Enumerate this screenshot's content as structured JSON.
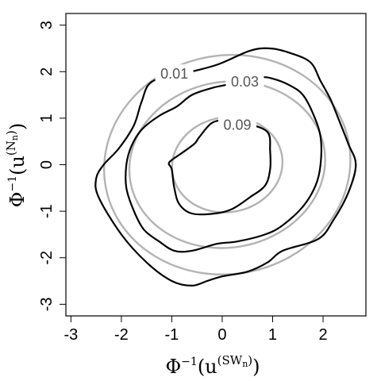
{
  "chart_data": {
    "type": "contour",
    "title": "",
    "xlabel": "Φ⁻¹(u^(SWₙ))",
    "ylabel": "Φ⁻¹(u^(Nₙ))",
    "xlim": [
      -3.1,
      2.85
    ],
    "ylim": [
      -3.25,
      3.25
    ],
    "xticks": [
      -3,
      -2,
      -1,
      0,
      1,
      2
    ],
    "yticks": [
      -3,
      -2,
      -1,
      0,
      1,
      2,
      3
    ],
    "grid": false,
    "series": [
      {
        "level": "0.01",
        "color": "#000000",
        "kind": "empirical",
        "points": [
          [
            -1.4,
            1.78
          ],
          [
            -0.8,
            1.95
          ],
          [
            -0.1,
            2.15
          ],
          [
            0.55,
            2.45
          ],
          [
            0.95,
            2.5
          ],
          [
            1.35,
            2.4
          ],
          [
            1.75,
            2.2
          ],
          [
            1.95,
            1.8
          ],
          [
            2.15,
            1.4
          ],
          [
            2.3,
            1.0
          ],
          [
            2.5,
            0.45
          ],
          [
            2.65,
            0.0
          ],
          [
            2.5,
            -0.6
          ],
          [
            2.2,
            -1.2
          ],
          [
            1.9,
            -1.6
          ],
          [
            1.2,
            -1.85
          ],
          [
            0.9,
            -2.1
          ],
          [
            0.5,
            -2.3
          ],
          [
            0.0,
            -2.4
          ],
          [
            -0.3,
            -2.5
          ],
          [
            -0.6,
            -2.6
          ],
          [
            -1.0,
            -2.5
          ],
          [
            -1.5,
            -2.1
          ],
          [
            -2.0,
            -1.5
          ],
          [
            -2.45,
            -0.7
          ],
          [
            -2.5,
            -0.3
          ],
          [
            -2.35,
            0.0
          ],
          [
            -2.05,
            0.35
          ],
          [
            -1.75,
            0.85
          ],
          [
            -1.6,
            1.35
          ],
          [
            -1.4,
            1.78
          ]
        ]
      },
      {
        "level": "0.03",
        "color": "#000000",
        "kind": "empirical",
        "points": [
          [
            -0.9,
            1.25
          ],
          [
            -0.6,
            1.5
          ],
          [
            -0.2,
            1.65
          ],
          [
            0.1,
            1.72
          ],
          [
            0.4,
            1.8
          ],
          [
            0.75,
            1.88
          ],
          [
            1.0,
            1.85
          ],
          [
            1.35,
            1.7
          ],
          [
            1.6,
            1.5
          ],
          [
            1.8,
            1.1
          ],
          [
            1.95,
            0.6
          ],
          [
            1.95,
            0.0
          ],
          [
            1.85,
            -0.45
          ],
          [
            1.6,
            -0.9
          ],
          [
            1.2,
            -1.3
          ],
          [
            0.85,
            -1.5
          ],
          [
            0.3,
            -1.65
          ],
          [
            -0.1,
            -1.7
          ],
          [
            -0.6,
            -1.85
          ],
          [
            -0.95,
            -1.85
          ],
          [
            -1.25,
            -1.65
          ],
          [
            -1.55,
            -1.4
          ],
          [
            -1.75,
            -1.0
          ],
          [
            -1.9,
            -0.5
          ],
          [
            -1.9,
            0.0
          ],
          [
            -1.8,
            0.4
          ],
          [
            -1.6,
            0.75
          ],
          [
            -1.25,
            1.05
          ],
          [
            -0.9,
            1.25
          ]
        ]
      },
      {
        "level": "0.09",
        "color": "#000000",
        "kind": "empirical",
        "points": [
          [
            -0.45,
            0.6
          ],
          [
            -0.2,
            0.9
          ],
          [
            0.1,
            0.95
          ],
          [
            0.5,
            0.88
          ],
          [
            0.9,
            0.7
          ],
          [
            0.95,
            0.3
          ],
          [
            0.95,
            -0.1
          ],
          [
            0.85,
            -0.45
          ],
          [
            0.55,
            -0.7
          ],
          [
            0.2,
            -0.95
          ],
          [
            -0.15,
            -1.05
          ],
          [
            -0.6,
            -1.05
          ],
          [
            -0.85,
            -0.85
          ],
          [
            -0.95,
            -0.5
          ],
          [
            -1.0,
            -0.1
          ],
          [
            -1.05,
            0.05
          ],
          [
            -0.8,
            0.25
          ],
          [
            -0.55,
            0.45
          ],
          [
            -0.45,
            0.6
          ]
        ]
      },
      {
        "level": "0.01",
        "color": "#b3b3b3",
        "kind": "theoretical",
        "center": [
          0.1,
          0.0
        ],
        "rx": 2.45,
        "ry": 2.35,
        "tilt": -10
      },
      {
        "level": "0.03",
        "color": "#b3b3b3",
        "kind": "theoretical",
        "center": [
          0.1,
          0.0
        ],
        "rx": 1.95,
        "ry": 1.78,
        "tilt": -10
      },
      {
        "level": "0.09",
        "color": "#b3b3b3",
        "kind": "theoretical",
        "center": [
          0.1,
          0.0
        ],
        "rx": 1.1,
        "ry": 1.02,
        "tilt": -10
      }
    ],
    "contour_labels": [
      {
        "text": "0.01",
        "x": -0.95,
        "y": 1.95
      },
      {
        "text": "0.03",
        "x": 0.45,
        "y": 1.78
      },
      {
        "text": "0.09",
        "x": 0.3,
        "y": 0.85
      }
    ]
  }
}
